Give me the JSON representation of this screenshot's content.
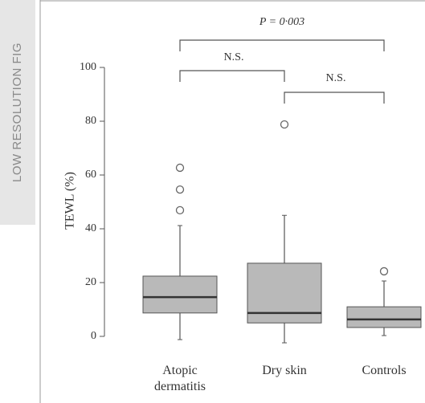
{
  "chart_data": {
    "type": "box",
    "watermark": "LOW RESOLUTION FIG",
    "y_label": "TEWL (%)",
    "categories": [
      "Atopic dermatitis",
      "Dry skin",
      "Controls"
    ],
    "boxes": [
      {
        "min": -1.2,
        "q1": 8.7,
        "median": 14.6,
        "q3": 22.4,
        "max": 41.2,
        "outliers": [
          46.9,
          54.6,
          62.7
        ]
      },
      {
        "min": -2.4,
        "q1": 5,
        "median": 8.7,
        "q3": 27.2,
        "max": 45,
        "outliers": [
          78.8
        ]
      },
      {
        "min": 0.3,
        "q1": 3.3,
        "median": 6.3,
        "q3": 11,
        "max": 20.6,
        "outliers": [
          24.2
        ]
      }
    ],
    "color": "#b9b9b9",
    "ylim": [
      -5,
      100
    ],
    "yticks": [
      0,
      20,
      40,
      60,
      80,
      100
    ],
    "annotations": [
      {
        "text": "P = 0·003",
        "from": 0,
        "to": 2
      },
      {
        "text": "N.S.",
        "from": 0,
        "to": 1
      },
      {
        "text": "N.S.",
        "from": 1,
        "to": 2
      }
    ]
  }
}
